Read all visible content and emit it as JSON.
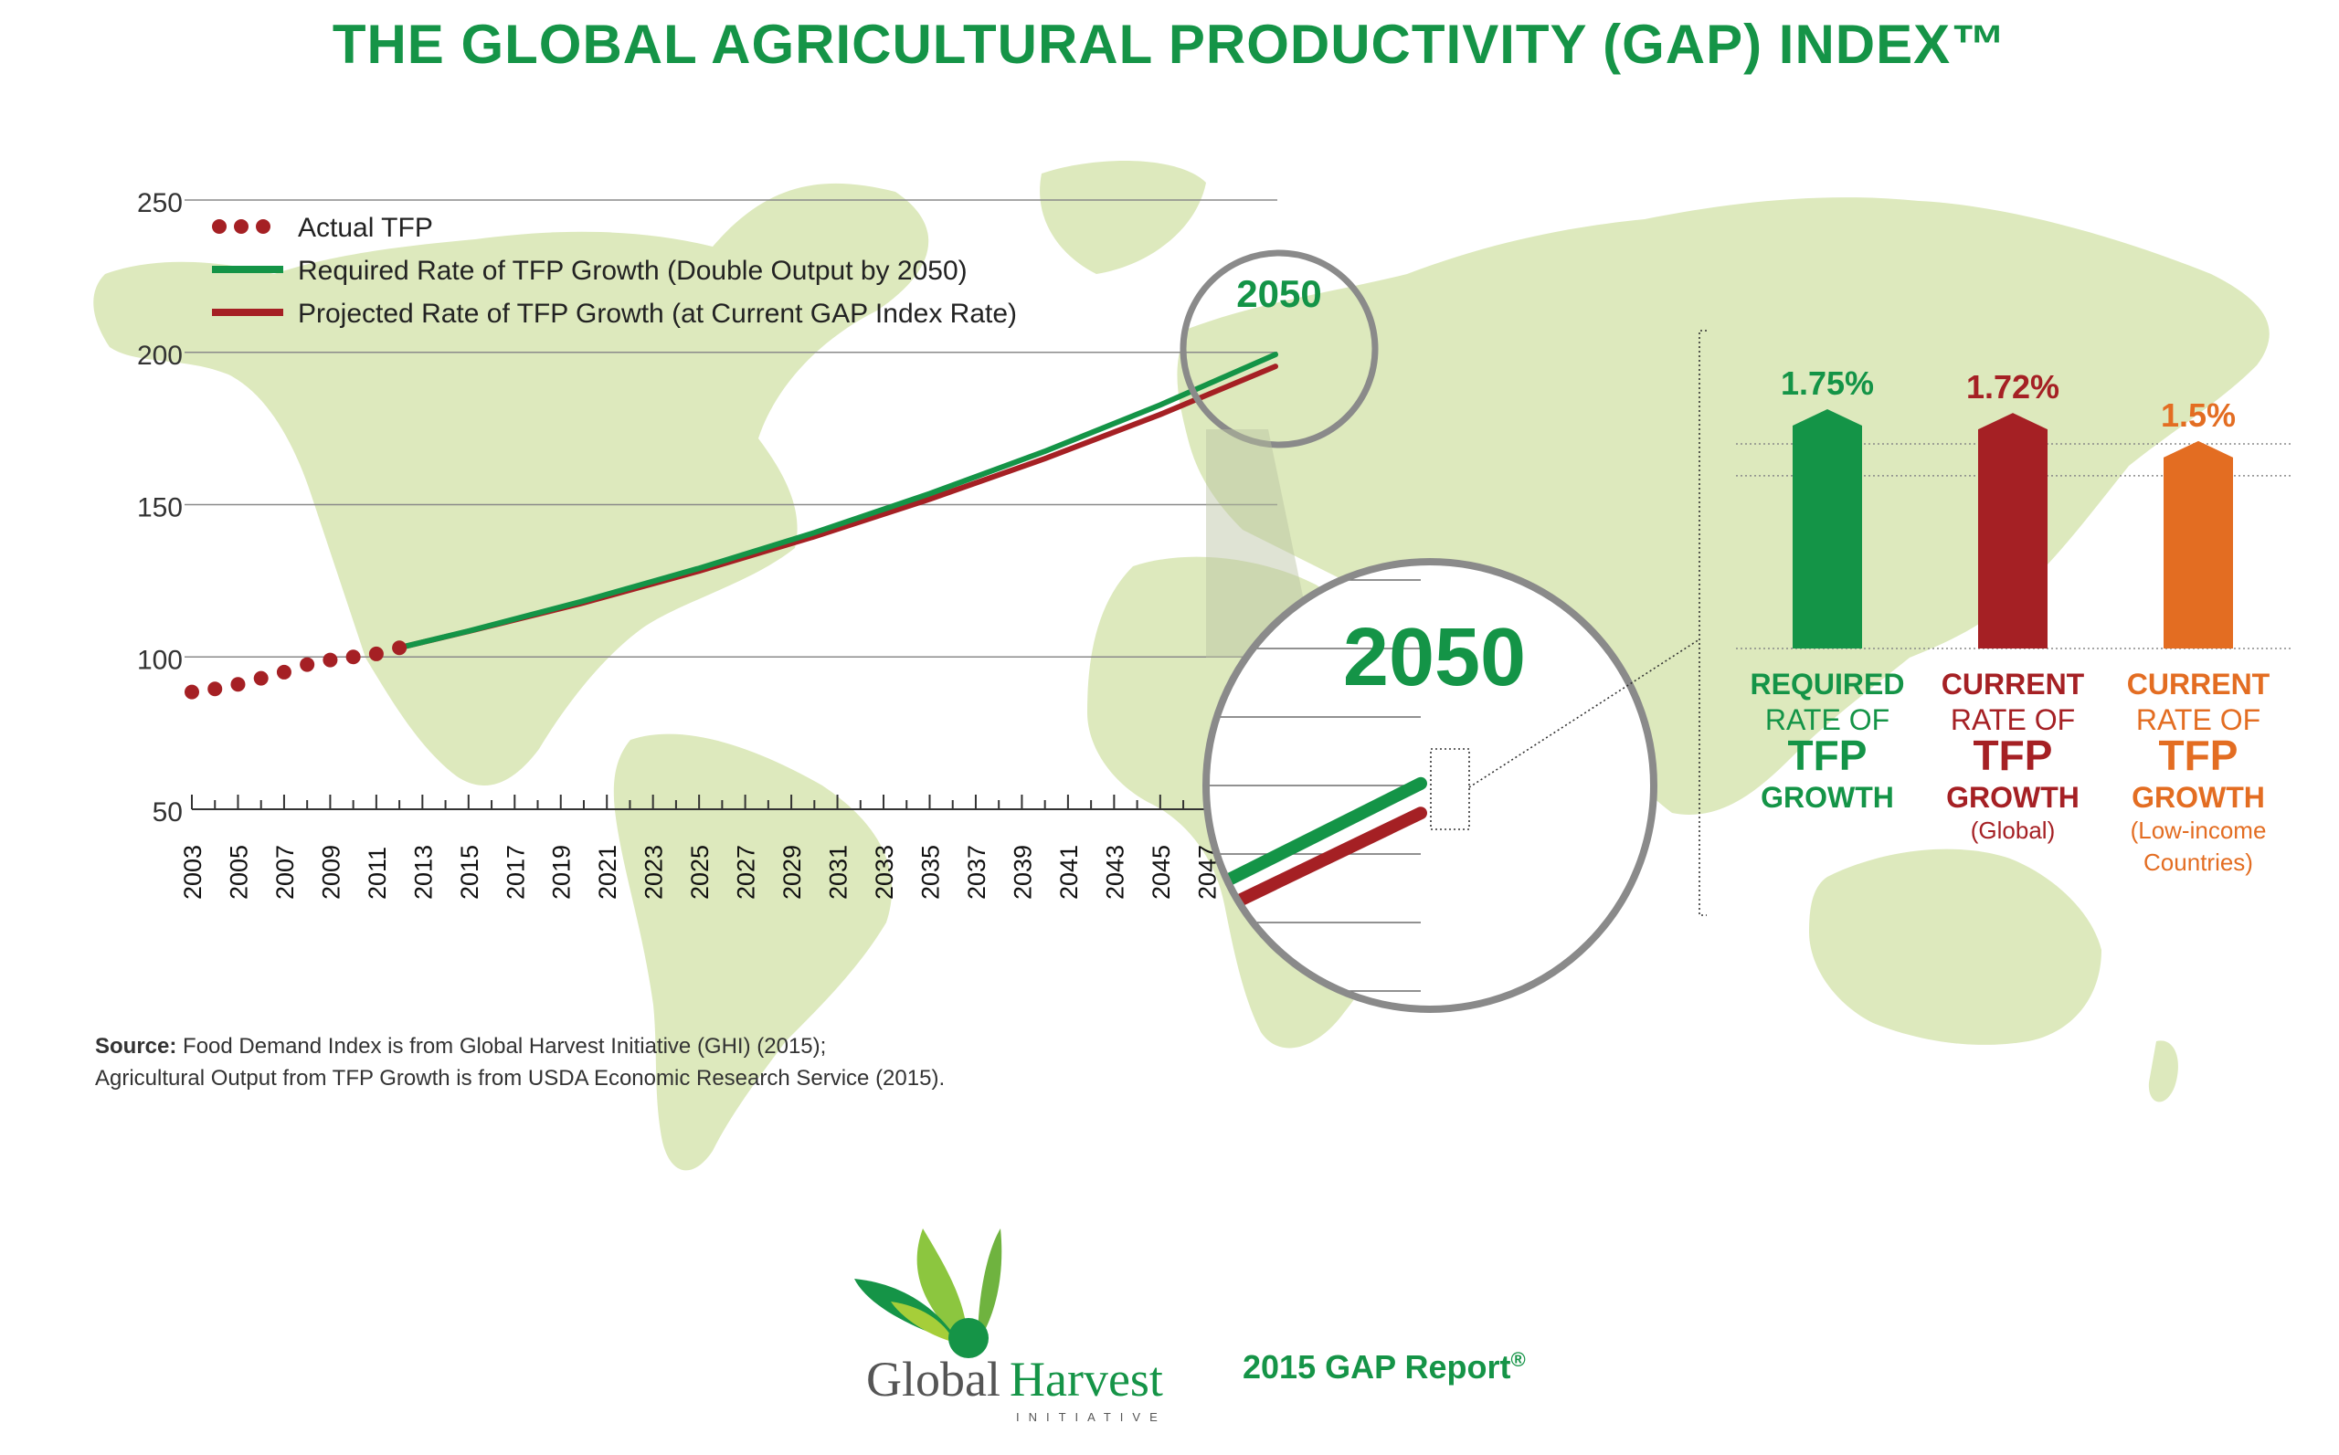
{
  "page": {
    "title": "THE GLOBAL AGRICULTURAL PRODUCTIVITY (GAP) INDEX™",
    "source_label": "Source:",
    "source_line1": "Food Demand Index is from Global Harvest Initiative (GHI) (2015);",
    "source_line2": "Agricultural Output from TFP Growth is from USDA Economic Research Service (2015).",
    "logo_word1": "Global",
    "logo_word2": "Harvest",
    "logo_sub": "INITIATIVE",
    "report": "2015 GAP Report",
    "report_mark": "®"
  },
  "colors": {
    "title": "#159447",
    "green": "#149447",
    "red": "#a52024",
    "orange": "#e36d22",
    "map": "#dde9bd"
  },
  "chart_data": [
    {
      "type": "line",
      "title": "",
      "xlabel": "",
      "ylabel": "",
      "ylim": [
        50,
        250
      ],
      "yticks": [
        50,
        100,
        150,
        200,
        250
      ],
      "xlim": [
        2003,
        2050
      ],
      "xtick_labels": [
        "2003",
        "2005",
        "2007",
        "2009",
        "2011",
        "2013",
        "2015",
        "2017",
        "2019",
        "2021",
        "2023",
        "2025",
        "2027",
        "2029",
        "2031",
        "2033",
        "2035",
        "2037",
        "2039",
        "2041",
        "2043",
        "2045",
        "2047"
      ],
      "legend_position": "top-left",
      "series": [
        {
          "name": "Actual TFP",
          "style": "dots",
          "color": "#a52024",
          "x": [
            2003,
            2004,
            2005,
            2006,
            2007,
            2008,
            2009,
            2010,
            2011,
            2012
          ],
          "y": [
            88.5,
            89.5,
            91,
            93,
            95,
            97.5,
            99,
            100,
            101,
            103
          ]
        },
        {
          "name": "Required Rate of TFP Growth (Double Output by 2050)",
          "style": "line",
          "color": "#149447",
          "x": [
            2012,
            2015,
            2020,
            2025,
            2030,
            2035,
            2040,
            2045,
            2050
          ],
          "y": [
            103,
            108.5,
            118.4,
            129.1,
            140.8,
            153.6,
            167.5,
            182.7,
            199.3
          ]
        },
        {
          "name": "Projected Rate of TFP Growth (at Current GAP Index Rate)",
          "style": "line",
          "color": "#a52024",
          "x": [
            2012,
            2015,
            2020,
            2025,
            2030,
            2035,
            2040,
            2045,
            2050
          ],
          "y": [
            103,
            108.4,
            117.8,
            128.2,
            139.5,
            151.8,
            165.1,
            179.6,
            195.4
          ]
        }
      ],
      "annotations": [
        "2050",
        "2050"
      ]
    },
    {
      "type": "bar",
      "title": "",
      "categories": [
        "REQUIRED RATE OF TFP GROWTH",
        "CURRENT RATE OF TFP GROWTH",
        "CURRENT RATE OF TFP GROWTH"
      ],
      "values": [
        1.75,
        1.72,
        1.5
      ],
      "value_labels": [
        "1.75%",
        "1.72%",
        "1.5%"
      ],
      "colors": [
        "#149447",
        "#a52024",
        "#e36d22"
      ],
      "bars": [
        {
          "l1": "REQUIRED",
          "l2": "RATE OF",
          "l3": "TFP",
          "l4": "GROWTH",
          "sub1": "",
          "sub2": ""
        },
        {
          "l1": "CURRENT",
          "l2": "RATE OF",
          "l3": "TFP",
          "l4": "GROWTH",
          "sub1": "(Global)",
          "sub2": ""
        },
        {
          "l1": "CURRENT",
          "l2": "RATE OF",
          "l3": "TFP",
          "l4": "GROWTH",
          "sub1": "(Low-income",
          "sub2": "Countries)"
        }
      ]
    }
  ]
}
